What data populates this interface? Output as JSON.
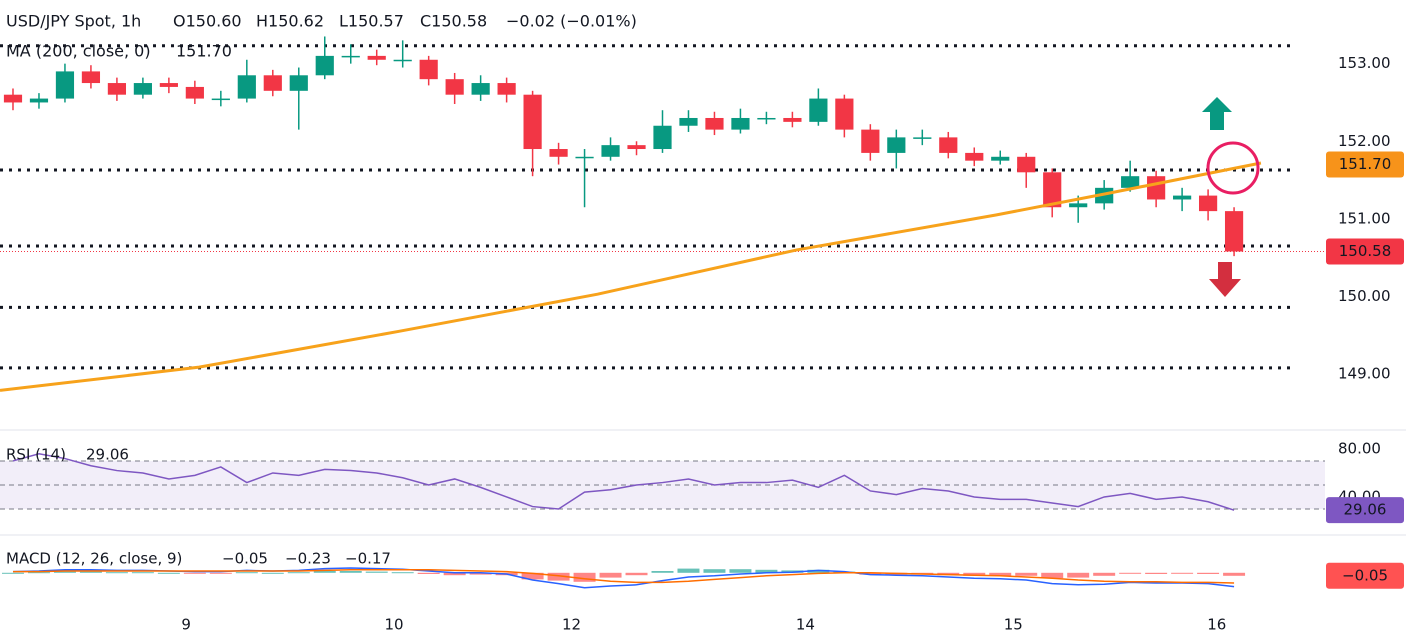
{
  "header": {
    "symbol": "USD/JPY Spot, 1h",
    "open": "O150.60",
    "high": "H150.62",
    "low": "L150.57",
    "close": "C150.58",
    "change": "−0.02 (−0.01%)",
    "ma_label": "MA (200, close, 0)",
    "ma_value": "151.70"
  },
  "chart_data": [
    {
      "type": "candlestick",
      "x": [
        0,
        3,
        6,
        9,
        12,
        15,
        18,
        21,
        24,
        27,
        30,
        33,
        36,
        39,
        42,
        45,
        48,
        51,
        54,
        57,
        60,
        63,
        66,
        69,
        72,
        75,
        78,
        81,
        84,
        87,
        90,
        93,
        96,
        99,
        102,
        105,
        108,
        111,
        114,
        117,
        120,
        123,
        126,
        129,
        132,
        135,
        138,
        141
      ],
      "open": [
        152.6,
        152.5,
        152.55,
        152.9,
        152.75,
        152.6,
        152.75,
        152.7,
        152.55,
        152.55,
        152.85,
        152.65,
        152.85,
        153.1,
        153.1,
        153.05,
        153.05,
        152.8,
        152.6,
        152.75,
        152.6,
        151.9,
        151.8,
        151.8,
        151.95,
        151.9,
        152.2,
        152.3,
        152.15,
        152.3,
        152.3,
        152.25,
        152.55,
        152.15,
        151.85,
        152.05,
        152.05,
        151.85,
        151.75,
        151.8,
        151.6,
        151.15,
        151.2,
        151.4,
        151.55,
        151.25,
        151.3,
        151.1
      ],
      "high": [
        152.68,
        152.62,
        153.0,
        152.98,
        152.82,
        152.82,
        152.82,
        152.78,
        152.65,
        153.05,
        152.92,
        152.95,
        153.35,
        153.25,
        153.18,
        153.3,
        153.1,
        152.88,
        152.85,
        152.82,
        152.65,
        151.98,
        151.9,
        152.05,
        152.0,
        152.4,
        152.4,
        152.38,
        152.42,
        152.38,
        152.38,
        152.68,
        152.6,
        152.22,
        152.15,
        152.15,
        152.12,
        151.92,
        151.88,
        151.85,
        151.65,
        151.3,
        151.5,
        151.75,
        151.62,
        151.4,
        151.38,
        151.15
      ],
      "low": [
        152.4,
        152.42,
        152.5,
        152.68,
        152.52,
        152.55,
        152.62,
        152.48,
        152.45,
        152.5,
        152.58,
        152.15,
        152.8,
        153.0,
        152.98,
        152.95,
        152.72,
        152.48,
        152.52,
        152.5,
        151.55,
        151.7,
        151.15,
        151.75,
        151.82,
        151.85,
        152.12,
        152.08,
        152.1,
        152.22,
        152.18,
        152.2,
        152.05,
        151.75,
        151.65,
        151.95,
        151.78,
        151.68,
        151.7,
        151.4,
        151.02,
        150.95,
        151.12,
        151.35,
        151.15,
        151.1,
        150.98,
        150.52
      ],
      "close": [
        152.5,
        152.55,
        152.9,
        152.75,
        152.6,
        152.75,
        152.7,
        152.55,
        152.55,
        152.85,
        152.65,
        152.85,
        153.1,
        153.1,
        153.05,
        153.05,
        152.8,
        152.6,
        152.75,
        152.6,
        151.9,
        151.8,
        151.8,
        151.95,
        151.9,
        152.2,
        152.3,
        152.15,
        152.3,
        152.3,
        152.25,
        152.55,
        152.15,
        151.85,
        152.05,
        152.05,
        151.85,
        151.75,
        151.8,
        151.6,
        151.15,
        151.2,
        151.4,
        151.55,
        151.25,
        151.3,
        151.1,
        150.58
      ],
      "up_color": "#089981",
      "down_color": "#f23645",
      "ma": {
        "x": [
          0,
          23,
          46,
          69,
          92,
          115,
          128,
          145.6
        ],
        "values": [
          148.79,
          149.09,
          149.55,
          150.03,
          150.6,
          151.05,
          151.33,
          151.72
        ],
        "color": "#f7a21b"
      },
      "levels": [
        153.23,
        151.63,
        150.65,
        149.86,
        149.08
      ],
      "last_price": {
        "value": 150.58,
        "label": "150.58",
        "color": "#f23645"
      },
      "ma_last": {
        "value": 151.7,
        "label": "151.70",
        "color": "#f7931a"
      },
      "xlim": [
        0,
        153
      ],
      "ylim": [
        148.28,
        153.82
      ],
      "xticks": [
        {
          "value": 21.5,
          "label": "9"
        },
        {
          "value": 45.5,
          "label": "10"
        },
        {
          "value": 66,
          "label": "12"
        },
        {
          "value": 93,
          "label": "14"
        },
        {
          "value": 117,
          "label": "15"
        },
        {
          "value": 140.5,
          "label": "16"
        }
      ],
      "yticks": [
        {
          "value": 153,
          "label": "153.00"
        },
        {
          "value": 152,
          "label": "152.00"
        },
        {
          "value": 151,
          "label": "151.00"
        },
        {
          "value": 150,
          "label": "150.00"
        },
        {
          "value": 149,
          "label": "149.00"
        }
      ]
    },
    {
      "type": "rsi",
      "title": "RSI (14)",
      "value_text": "29.06",
      "color": "#7e57c2",
      "x": [
        0,
        3,
        6,
        9,
        12,
        15,
        18,
        21,
        24,
        27,
        30,
        33,
        36,
        39,
        42,
        45,
        48,
        51,
        54,
        57,
        60,
        63,
        66,
        69,
        72,
        75,
        78,
        81,
        84,
        87,
        90,
        93,
        96,
        99,
        102,
        105,
        108,
        111,
        114,
        117,
        120,
        123,
        126,
        129,
        132,
        135,
        138,
        141
      ],
      "values": [
        70,
        76,
        72,
        66,
        62,
        60,
        55,
        58,
        65,
        52,
        60,
        58,
        63,
        62,
        60,
        56,
        50,
        55,
        48,
        40,
        32,
        30,
        44,
        46,
        50,
        52,
        55,
        50,
        52,
        52,
        54,
        48,
        58,
        45,
        42,
        47,
        45,
        40,
        38,
        38,
        35,
        32,
        40,
        43,
        38,
        40,
        36,
        29
      ],
      "levels": [
        70,
        50,
        30
      ],
      "last": {
        "value": 29.06,
        "label": "29.06"
      },
      "ylim": [
        8.3,
        95.8
      ],
      "yticks": [
        {
          "value": 80,
          "label": "80.00"
        },
        {
          "value": 40,
          "label": "40.00"
        }
      ]
    },
    {
      "type": "macd",
      "title": "MACD (12, 26, close, 9)",
      "hist_text": "−0.05",
      "macd_text": "−0.23",
      "signal_text": "−0.17",
      "x": [
        0,
        3,
        6,
        9,
        12,
        15,
        18,
        21,
        24,
        27,
        30,
        33,
        36,
        39,
        42,
        45,
        48,
        51,
        54,
        57,
        60,
        63,
        66,
        69,
        72,
        75,
        78,
        81,
        84,
        87,
        90,
        93,
        96,
        99,
        102,
        105,
        108,
        111,
        114,
        117,
        120,
        123,
        126,
        129,
        132,
        135,
        138,
        141
      ],
      "macd": [
        0.02,
        0.03,
        0.05,
        0.05,
        0.04,
        0.04,
        0.03,
        0.02,
        0.02,
        0.04,
        0.03,
        0.04,
        0.07,
        0.08,
        0.07,
        0.06,
        0.03,
        0.0,
        0.0,
        -0.02,
        -0.12,
        -0.18,
        -0.25,
        -0.22,
        -0.2,
        -0.13,
        -0.07,
        -0.05,
        -0.02,
        0.0,
        0.01,
        0.04,
        0.02,
        -0.03,
        -0.04,
        -0.05,
        -0.07,
        -0.09,
        -0.1,
        -0.12,
        -0.18,
        -0.2,
        -0.19,
        -0.16,
        -0.17,
        -0.17,
        -0.18,
        -0.23
      ],
      "signal": [
        0.02,
        0.02,
        0.03,
        0.03,
        0.03,
        0.03,
        0.03,
        0.03,
        0.03,
        0.03,
        0.03,
        0.03,
        0.04,
        0.05,
        0.05,
        0.05,
        0.05,
        0.04,
        0.03,
        0.02,
        -0.01,
        -0.05,
        -0.1,
        -0.14,
        -0.16,
        -0.16,
        -0.14,
        -0.11,
        -0.08,
        -0.05,
        -0.03,
        -0.01,
        0.0,
        0.0,
        -0.01,
        -0.02,
        -0.03,
        -0.04,
        -0.05,
        -0.07,
        -0.09,
        -0.12,
        -0.14,
        -0.15,
        -0.15,
        -0.16,
        -0.16,
        -0.17
      ],
      "hist": [
        0,
        0.01,
        0.02,
        0.02,
        0.01,
        0.01,
        0,
        -0.01,
        -0.01,
        0.01,
        0,
        0.01,
        0.03,
        0.03,
        0.02,
        0.01,
        -0.02,
        -0.04,
        -0.03,
        -0.04,
        -0.11,
        -0.13,
        -0.15,
        -0.08,
        -0.04,
        0.03,
        0.07,
        0.06,
        0.06,
        0.05,
        0.04,
        0.05,
        0.02,
        -0.03,
        -0.03,
        -0.03,
        -0.04,
        -0.05,
        -0.05,
        -0.05,
        -0.09,
        -0.08,
        -0.05,
        -0.01,
        -0.02,
        -0.01,
        -0.02,
        -0.05
      ],
      "macd_color": "#2962ff",
      "signal_color": "#ff6d00",
      "pos_color": "#26a69a",
      "neg_color": "#ff5252",
      "last": {
        "value": -0.05,
        "label": "−0.05"
      },
      "ylim": [
        -0.62,
        0.63
      ]
    }
  ]
}
